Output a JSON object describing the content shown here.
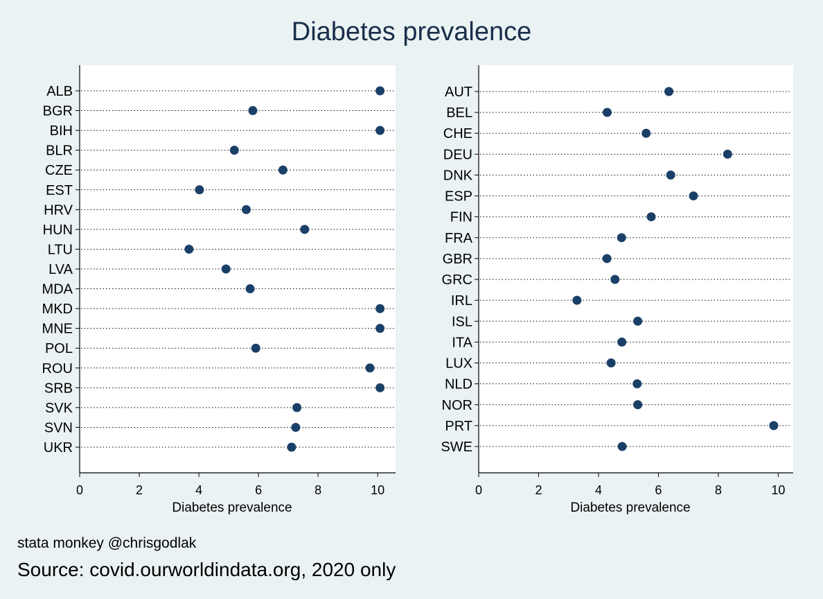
{
  "title": "Diabetes prevalence",
  "credit": "stata monkey @chrisgodlak",
  "source": "Source: covid.ourworldindata.org, 2020 only",
  "colors": {
    "background": "#eaf2f3",
    "plot_bg": "#ffffff",
    "marker": "#1b4068",
    "title": "#1a2e4a"
  },
  "chart_data": [
    {
      "type": "scatter",
      "title": "",
      "xlabel": "Diabetes prevalence",
      "xlim": [
        0,
        10.6
      ],
      "xticks": [
        0,
        2,
        4,
        6,
        8,
        10
      ],
      "grid": "dotted horizontal",
      "categories": [
        "ALB",
        "BGR",
        "BIH",
        "BLR",
        "CZE",
        "EST",
        "HRV",
        "HUN",
        "LTU",
        "LVA",
        "MDA",
        "MKD",
        "MNE",
        "POL",
        "ROU",
        "SRB",
        "SVK",
        "SVN",
        "UKR"
      ],
      "values": [
        10.08,
        5.81,
        10.08,
        5.19,
        6.82,
        4.02,
        5.59,
        7.55,
        3.67,
        4.91,
        5.72,
        10.08,
        10.08,
        5.91,
        9.74,
        10.08,
        7.29,
        7.25,
        7.11
      ]
    },
    {
      "type": "scatter",
      "title": "",
      "xlabel": "Diabetes prevalence",
      "xlim": [
        0,
        10.5
      ],
      "xticks": [
        0,
        2,
        4,
        6,
        8,
        10
      ],
      "grid": "dotted horizontal",
      "categories": [
        "AUT",
        "BEL",
        "CHE",
        "DEU",
        "DNK",
        "ESP",
        "FIN",
        "FRA",
        "GBR",
        "GRC",
        "IRL",
        "ISL",
        "ITA",
        "LUX",
        "NLD",
        "NOR",
        "PRT",
        "SWE"
      ],
      "values": [
        6.35,
        4.29,
        5.59,
        8.31,
        6.41,
        7.17,
        5.76,
        4.77,
        4.28,
        4.55,
        3.28,
        5.31,
        4.78,
        4.42,
        5.29,
        5.31,
        9.85,
        4.79
      ]
    }
  ]
}
